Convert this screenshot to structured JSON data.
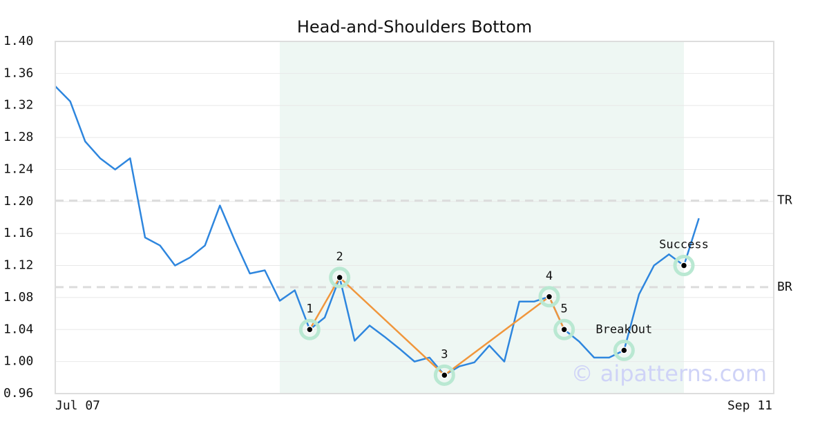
{
  "chart_data": {
    "type": "line",
    "title": "Head-and-Shoulders Bottom",
    "categories": [
      "Jul 07",
      null,
      null,
      null,
      null,
      null,
      null,
      null,
      null,
      null,
      null,
      null,
      null,
      null,
      null,
      null,
      null,
      null,
      null,
      null,
      null,
      null,
      null,
      null,
      null,
      null,
      null,
      null,
      null,
      null,
      null,
      null,
      null,
      null,
      null,
      null,
      null,
      null,
      null,
      null,
      null,
      null,
      null,
      null,
      null,
      null,
      null,
      null,
      "Sep 11"
    ],
    "values": [
      1.344,
      1.325,
      1.275,
      1.254,
      1.24,
      1.254,
      1.155,
      1.145,
      1.12,
      1.13,
      1.145,
      1.195,
      1.151,
      1.11,
      1.114,
      1.076,
      1.089,
      1.04,
      1.055,
      1.105,
      1.026,
      1.045,
      1.031,
      1.016,
      1.0,
      1.005,
      0.983,
      0.994,
      0.999,
      1.02,
      1.0,
      1.075,
      1.075,
      1.081,
      1.04,
      1.025,
      1.005,
      1.005,
      1.014,
      1.084,
      1.12,
      1.134,
      1.12,
      1.179,
      null,
      null,
      null,
      null,
      null
    ],
    "color": "#2e86de",
    "ylim": [
      0.96,
      1.4
    ],
    "yticks": [
      {
        "value": 0.96,
        "label": "0.96"
      },
      {
        "value": 1.0,
        "label": "1.00"
      },
      {
        "value": 1.04,
        "label": "1.04"
      },
      {
        "value": 1.08,
        "label": "1.08"
      },
      {
        "value": 1.12,
        "label": "1.12"
      },
      {
        "value": 1.16,
        "label": "1.16"
      },
      {
        "value": 1.2,
        "label": "1.20"
      },
      {
        "value": 1.24,
        "label": "1.24"
      },
      {
        "value": 1.28,
        "label": "1.28"
      },
      {
        "value": 1.32,
        "label": "1.32"
      },
      {
        "value": 1.36,
        "label": "1.36"
      },
      {
        "value": 1.4,
        "label": "1.40"
      }
    ],
    "grid": true,
    "pattern": {
      "color": "#f0963c",
      "shade_color": "#eef7f3",
      "shade_range": [
        15,
        42
      ],
      "points": [
        {
          "index": 17,
          "value": 1.04,
          "label": "1"
        },
        {
          "index": 19,
          "value": 1.105,
          "label": "2"
        },
        {
          "index": 26,
          "value": 0.983,
          "label": "3"
        },
        {
          "index": 33,
          "value": 1.081,
          "label": "4"
        },
        {
          "index": 34,
          "value": 1.04,
          "label": "5"
        }
      ],
      "events": [
        {
          "index": 38,
          "value": 1.014,
          "label": "BreakOut"
        },
        {
          "index": 42,
          "value": 1.12,
          "label": "Success"
        }
      ]
    },
    "levels": [
      {
        "label": "TR",
        "value": 1.201
      },
      {
        "label": "BR",
        "value": 1.093
      }
    ],
    "watermark": "© aipatterns.com"
  }
}
